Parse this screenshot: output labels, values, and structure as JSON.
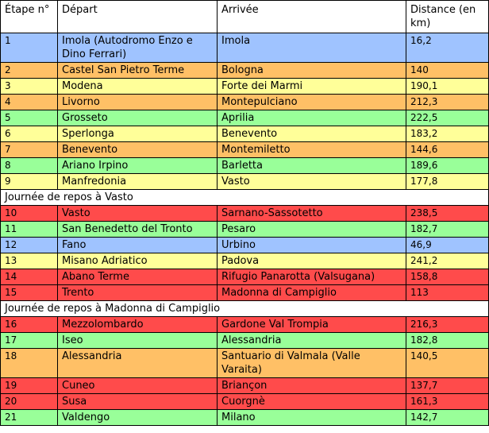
{
  "table": {
    "headers": [
      "Étape n°",
      "Départ",
      "Arrivée",
      "Distance (en km)"
    ],
    "rows": [
      {
        "etape": "1",
        "depart": "Imola (Autodromo Enzo e Dino Ferrari)",
        "arrivee": "Imola",
        "distance": "16,2",
        "color": "blue"
      },
      {
        "etape": "2",
        "depart": "Castel San Pietro Terme",
        "arrivee": "Bologna",
        "distance": "140",
        "color": "orange"
      },
      {
        "etape": "3",
        "depart": "Modena",
        "arrivee": "Forte dei Marmi",
        "distance": "190,1",
        "color": "yellow"
      },
      {
        "etape": "4",
        "depart": "Livorno",
        "arrivee": "Montepulciano",
        "distance": "212,3",
        "color": "orange"
      },
      {
        "etape": "5",
        "depart": "Grosseto",
        "arrivee": "Aprilia",
        "distance": "222,5",
        "color": "green"
      },
      {
        "etape": "6",
        "depart": "Sperlonga",
        "arrivee": "Benevento",
        "distance": "183,2",
        "color": "yellow"
      },
      {
        "etape": "7",
        "depart": "Benevento",
        "arrivee": "Montemiletto",
        "distance": "144,6",
        "color": "orange"
      },
      {
        "etape": "8",
        "depart": "Ariano Irpino",
        "arrivee": "Barletta",
        "distance": "189,6",
        "color": "green"
      },
      {
        "etape": "9",
        "depart": "Manfredonia",
        "arrivee": "Vasto",
        "distance": "177,8",
        "color": "yellow"
      },
      {
        "rest": "Journée de repos à Vasto"
      },
      {
        "etape": "10",
        "depart": "Vasto",
        "arrivee": "Sarnano-Sassotetto",
        "distance": "238,5",
        "color": "red"
      },
      {
        "etape": "11",
        "depart": "San Benedetto del Tronto",
        "arrivee": "Pesaro",
        "distance": "182,7",
        "color": "green"
      },
      {
        "etape": "12",
        "depart": "Fano",
        "arrivee": "Urbino",
        "distance": "46,9",
        "color": "blue"
      },
      {
        "etape": "13",
        "depart": "Misano Adriatico",
        "arrivee": "Padova",
        "distance": "241,2",
        "color": "yellow"
      },
      {
        "etape": "14",
        "depart": "Abano Terme",
        "arrivee": "Rifugio Panarotta (Valsugana)",
        "distance": "158,8",
        "color": "red"
      },
      {
        "etape": "15",
        "depart": "Trento",
        "arrivee": "Madonna di Campiglio",
        "distance": "113",
        "color": "red"
      },
      {
        "rest": "Journée de repos à Madonna di Campiglio"
      },
      {
        "etape": "16",
        "depart": "Mezzolombardo",
        "arrivee": "Gardone Val Trompia",
        "distance": "216,3",
        "color": "red"
      },
      {
        "etape": "17",
        "depart": "Iseo",
        "arrivee": "Alessandria",
        "distance": "182,8",
        "color": "green"
      },
      {
        "etape": "18",
        "depart": "Alessandria",
        "arrivee": "Santuario di Valmala (Valle Varaita)",
        "distance": "140,5",
        "color": "orange"
      },
      {
        "etape": "19",
        "depart": "Cuneo",
        "arrivee": "Briançon",
        "distance": "137,7",
        "color": "red"
      },
      {
        "etape": "20",
        "depart": "Susa",
        "arrivee": "Cuorgnè",
        "distance": "161,3",
        "color": "red"
      },
      {
        "etape": "21",
        "depart": "Valdengo",
        "arrivee": "Milano",
        "distance": "142,7",
        "color": "green"
      }
    ]
  },
  "colors": {
    "blue": "#9fc3ff",
    "orange": "#ffc066",
    "yellow": "#ffff99",
    "green": "#99ff99",
    "red": "#ff4b4b"
  }
}
